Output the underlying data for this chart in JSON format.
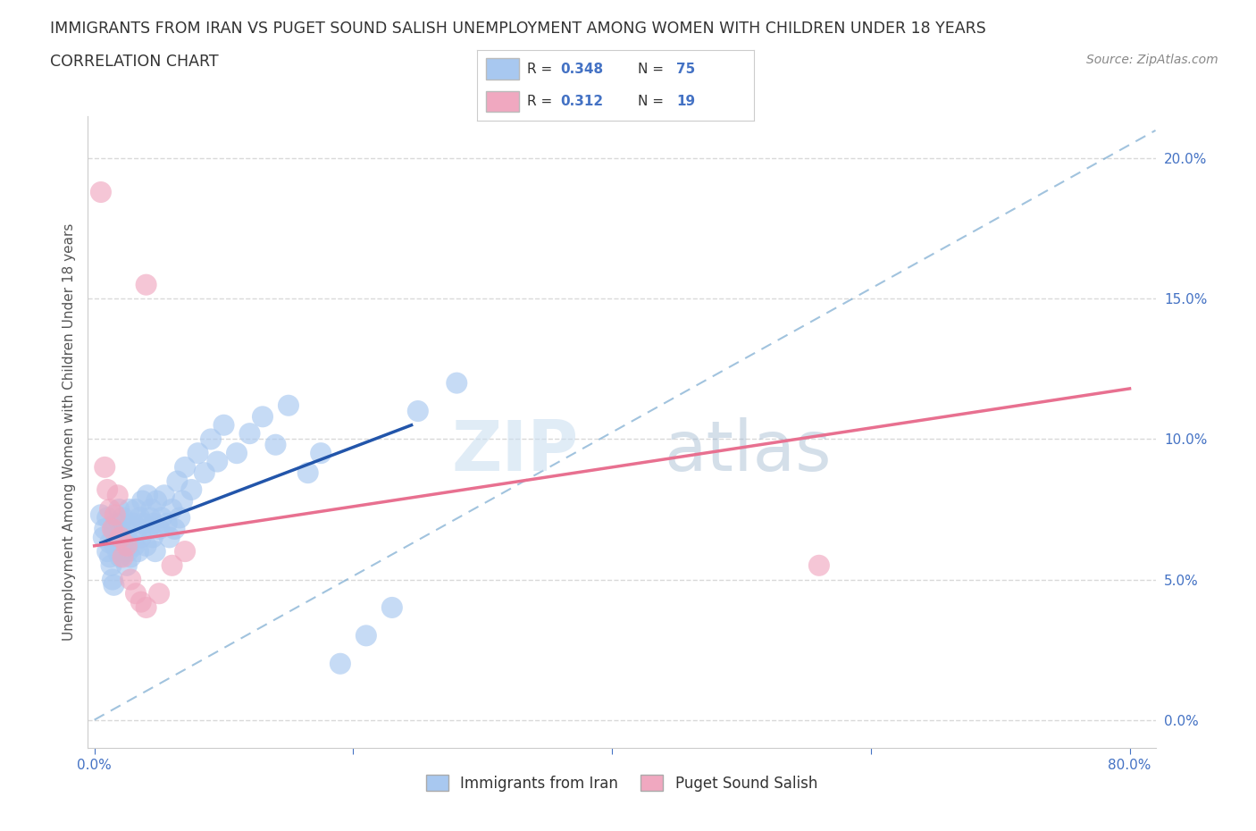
{
  "title_line1": "IMMIGRANTS FROM IRAN VS PUGET SOUND SALISH UNEMPLOYMENT AMONG WOMEN WITH CHILDREN UNDER 18 YEARS",
  "title_line2": "CORRELATION CHART",
  "source_text": "Source: ZipAtlas.com",
  "ylabel": "Unemployment Among Women with Children Under 18 years",
  "xlim": [
    -0.005,
    0.82
  ],
  "ylim": [
    -0.01,
    0.215
  ],
  "xticks": [
    0.0,
    0.2,
    0.4,
    0.6,
    0.8
  ],
  "xtick_labels": [
    "0.0%",
    "",
    "",
    "",
    "80.0%"
  ],
  "yticks": [
    0.0,
    0.05,
    0.1,
    0.15,
    0.2
  ],
  "ytick_labels": [
    "0.0%",
    "5.0%",
    "10.0%",
    "15.0%",
    "20.0%"
  ],
  "iran_color": "#a8c8f0",
  "salish_color": "#f0a8c0",
  "iran_line_color": "#2255aa",
  "salish_line_color": "#e87090",
  "diag_line_color": "#7aaad0",
  "R_iran": 0.348,
  "N_iran": 75,
  "R_salish": 0.312,
  "N_salish": 19,
  "legend_label_iran": "Immigrants from Iran",
  "legend_label_salish": "Puget Sound Salish",
  "watermark_zip": "ZIP",
  "watermark_atlas": "atlas",
  "background_color": "#ffffff",
  "iran_x": [
    0.005,
    0.007,
    0.008,
    0.01,
    0.01,
    0.012,
    0.012,
    0.013,
    0.014,
    0.015,
    0.015,
    0.016,
    0.017,
    0.018,
    0.018,
    0.019,
    0.02,
    0.02,
    0.021,
    0.022,
    0.022,
    0.023,
    0.024,
    0.025,
    0.025,
    0.026,
    0.027,
    0.028,
    0.03,
    0.031,
    0.032,
    0.033,
    0.034,
    0.035,
    0.036,
    0.037,
    0.038,
    0.04,
    0.041,
    0.042,
    0.043,
    0.044,
    0.045,
    0.046,
    0.047,
    0.048,
    0.05,
    0.052,
    0.054,
    0.056,
    0.058,
    0.06,
    0.062,
    0.064,
    0.066,
    0.068,
    0.07,
    0.075,
    0.08,
    0.085,
    0.09,
    0.095,
    0.1,
    0.11,
    0.12,
    0.13,
    0.14,
    0.15,
    0.165,
    0.175,
    0.19,
    0.21,
    0.23,
    0.25,
    0.28
  ],
  "iran_y": [
    0.073,
    0.065,
    0.068,
    0.072,
    0.06,
    0.058,
    0.063,
    0.055,
    0.05,
    0.048,
    0.068,
    0.062,
    0.07,
    0.065,
    0.06,
    0.075,
    0.058,
    0.07,
    0.065,
    0.062,
    0.072,
    0.06,
    0.068,
    0.055,
    0.065,
    0.06,
    0.075,
    0.058,
    0.07,
    0.062,
    0.075,
    0.068,
    0.06,
    0.072,
    0.065,
    0.078,
    0.07,
    0.062,
    0.08,
    0.068,
    0.072,
    0.075,
    0.065,
    0.07,
    0.06,
    0.078,
    0.068,
    0.072,
    0.08,
    0.07,
    0.065,
    0.075,
    0.068,
    0.085,
    0.072,
    0.078,
    0.09,
    0.082,
    0.095,
    0.088,
    0.1,
    0.092,
    0.105,
    0.095,
    0.102,
    0.108,
    0.098,
    0.112,
    0.088,
    0.095,
    0.02,
    0.03,
    0.04,
    0.11,
    0.12
  ],
  "salish_x": [
    0.005,
    0.008,
    0.01,
    0.012,
    0.014,
    0.016,
    0.018,
    0.02,
    0.022,
    0.025,
    0.028,
    0.032,
    0.036,
    0.04,
    0.05,
    0.06,
    0.07,
    0.04,
    0.56
  ],
  "salish_y": [
    0.188,
    0.09,
    0.082,
    0.075,
    0.068,
    0.073,
    0.08,
    0.065,
    0.058,
    0.062,
    0.05,
    0.045,
    0.042,
    0.04,
    0.045,
    0.055,
    0.06,
    0.155,
    0.055
  ],
  "iran_trend_x": [
    0.005,
    0.245
  ],
  "iran_trend_y_start": 0.063,
  "iran_trend_y_end": 0.105,
  "salish_trend_x": [
    0.0,
    0.8
  ],
  "salish_trend_y_start": 0.062,
  "salish_trend_y_end": 0.118
}
